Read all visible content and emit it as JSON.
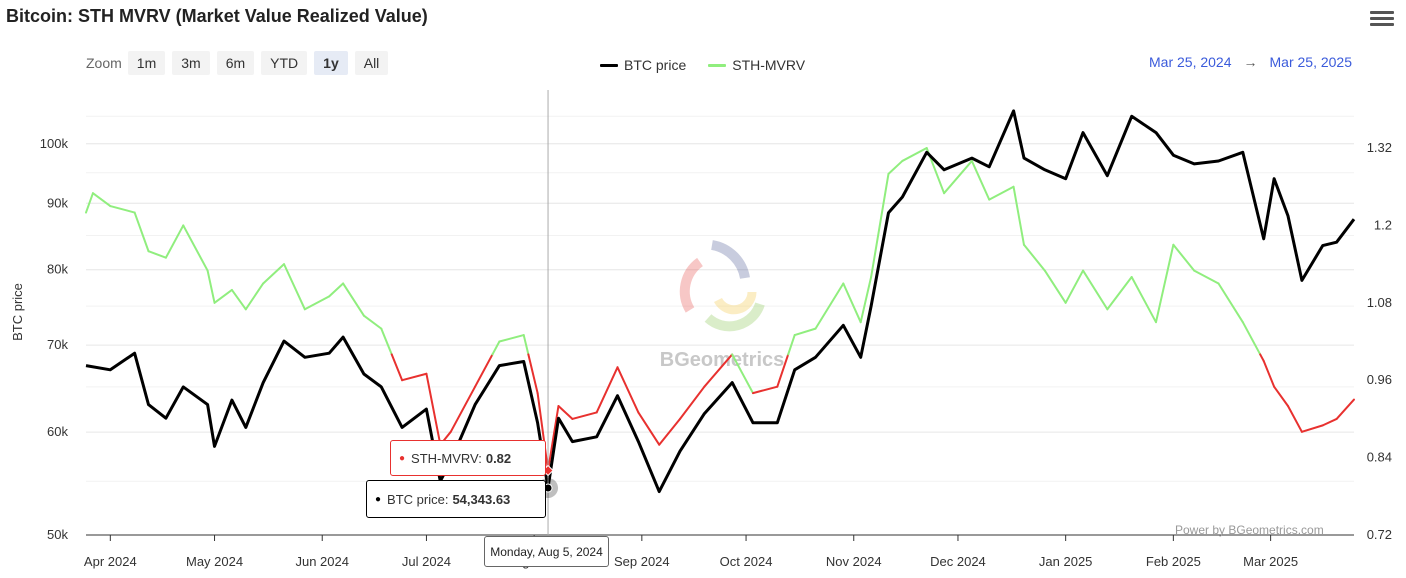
{
  "title": "Bitcoin: STH MVRV (Market Value Realized Value)",
  "zoom": {
    "label": "Zoom",
    "buttons": [
      "1m",
      "3m",
      "6m",
      "YTD",
      "1y",
      "All"
    ],
    "active": "1y"
  },
  "legend": [
    {
      "name": "BTC price",
      "color": "#000000"
    },
    {
      "name": "STH-MVRV",
      "color": "#90ee7e"
    }
  ],
  "range": {
    "from": "Mar 25, 2024",
    "arrow": "→",
    "to": "Mar 25, 2025"
  },
  "watermark": "BGeometrics",
  "credit": "Power by BGeometrics.com",
  "menu_icon": "hamburger-icon",
  "tooltips": {
    "mvrv": {
      "label": "STH-MVRV:",
      "value": "0.82"
    },
    "price": {
      "label": "BTC price:",
      "value": "54,343.63"
    },
    "date": "Monday, Aug 5, 2024"
  },
  "chart_data": {
    "type": "line",
    "x_type": "date",
    "x_range": [
      "2024-03-25",
      "2025-03-25"
    ],
    "x_ticks": [
      "Apr 2024",
      "May 2024",
      "Jun 2024",
      "Jul 2024",
      "Aug 2024",
      "Sep 2024",
      "Oct 2024",
      "Nov 2024",
      "Dec 2024",
      "Jan 2025",
      "Feb 2025",
      "Mar 2025"
    ],
    "y_left": {
      "label": "BTC price",
      "scale": "log",
      "ticks": [
        "50k",
        "60k",
        "70k",
        "80k",
        "90k",
        "100k"
      ],
      "range": [
        50000,
        110000
      ]
    },
    "y_right": {
      "label": "",
      "ticks": [
        "0.72",
        "0.84",
        "0.96",
        "1.08",
        "1.2",
        "1.32"
      ],
      "range": [
        0.72,
        1.41
      ]
    },
    "mvrv_threshold": 1.0,
    "mvrv_colors": {
      "above": "#90ee7e",
      "below": "#e8312f"
    },
    "series": [
      {
        "name": "BTC price",
        "axis": "left",
        "color": "#000000",
        "points": [
          [
            "2024-03-25",
            67500
          ],
          [
            "2024-04-01",
            67000
          ],
          [
            "2024-04-08",
            69000
          ],
          [
            "2024-04-12",
            63000
          ],
          [
            "2024-04-17",
            61500
          ],
          [
            "2024-04-22",
            65000
          ],
          [
            "2024-04-29",
            63000
          ],
          [
            "2024-05-01",
            58500
          ],
          [
            "2024-05-06",
            63500
          ],
          [
            "2024-05-10",
            60500
          ],
          [
            "2024-05-15",
            65500
          ],
          [
            "2024-05-21",
            70500
          ],
          [
            "2024-05-27",
            68500
          ],
          [
            "2024-06-03",
            69000
          ],
          [
            "2024-06-07",
            71000
          ],
          [
            "2024-06-13",
            66500
          ],
          [
            "2024-06-18",
            65000
          ],
          [
            "2024-06-24",
            60500
          ],
          [
            "2024-07-01",
            62500
          ],
          [
            "2024-07-05",
            55000
          ],
          [
            "2024-07-08",
            57000
          ],
          [
            "2024-07-15",
            63000
          ],
          [
            "2024-07-22",
            67500
          ],
          [
            "2024-07-29",
            68000
          ],
          [
            "2024-08-02",
            61000
          ],
          [
            "2024-08-05",
            54343.63
          ],
          [
            "2024-08-08",
            61500
          ],
          [
            "2024-08-12",
            59000
          ],
          [
            "2024-08-19",
            59500
          ],
          [
            "2024-08-25",
            64000
          ],
          [
            "2024-08-31",
            59000
          ],
          [
            "2024-09-06",
            54000
          ],
          [
            "2024-09-12",
            58000
          ],
          [
            "2024-09-19",
            62000
          ],
          [
            "2024-09-27",
            65500
          ],
          [
            "2024-10-03",
            61000
          ],
          [
            "2024-10-10",
            61000
          ],
          [
            "2024-10-15",
            67000
          ],
          [
            "2024-10-21",
            68500
          ],
          [
            "2024-10-29",
            72500
          ],
          [
            "2024-11-03",
            68500
          ],
          [
            "2024-11-06",
            75000
          ],
          [
            "2024-11-11",
            88500
          ],
          [
            "2024-11-15",
            91000
          ],
          [
            "2024-11-22",
            98500
          ],
          [
            "2024-11-27",
            95500
          ],
          [
            "2024-12-05",
            97500
          ],
          [
            "2024-12-10",
            96000
          ],
          [
            "2024-12-17",
            106000
          ],
          [
            "2024-12-20",
            97500
          ],
          [
            "2024-12-26",
            95500
          ],
          [
            "2025-01-01",
            94000
          ],
          [
            "2025-01-06",
            102000
          ],
          [
            "2025-01-13",
            94500
          ],
          [
            "2025-01-20",
            105000
          ],
          [
            "2025-01-27",
            102000
          ],
          [
            "2025-02-01",
            98000
          ],
          [
            "2025-02-07",
            96500
          ],
          [
            "2025-02-14",
            97000
          ],
          [
            "2025-02-21",
            98500
          ],
          [
            "2025-02-27",
            84500
          ],
          [
            "2025-03-02",
            94000
          ],
          [
            "2025-03-06",
            88000
          ],
          [
            "2025-03-10",
            78500
          ],
          [
            "2025-03-16",
            83500
          ],
          [
            "2025-03-20",
            84000
          ],
          [
            "2025-03-25",
            87500
          ]
        ]
      },
      {
        "name": "STH-MVRV",
        "axis": "right",
        "color": "#90ee7e",
        "points": [
          [
            "2024-03-25",
            1.22
          ],
          [
            "2024-03-27",
            1.25
          ],
          [
            "2024-04-01",
            1.23
          ],
          [
            "2024-04-08",
            1.22
          ],
          [
            "2024-04-12",
            1.16
          ],
          [
            "2024-04-17",
            1.15
          ],
          [
            "2024-04-22",
            1.2
          ],
          [
            "2024-04-29",
            1.13
          ],
          [
            "2024-05-01",
            1.08
          ],
          [
            "2024-05-06",
            1.1
          ],
          [
            "2024-05-10",
            1.07
          ],
          [
            "2024-05-15",
            1.11
          ],
          [
            "2024-05-21",
            1.14
          ],
          [
            "2024-05-27",
            1.07
          ],
          [
            "2024-06-03",
            1.09
          ],
          [
            "2024-06-07",
            1.11
          ],
          [
            "2024-06-13",
            1.06
          ],
          [
            "2024-06-18",
            1.04
          ],
          [
            "2024-06-24",
            0.96
          ],
          [
            "2024-07-01",
            0.97
          ],
          [
            "2024-07-05",
            0.86
          ],
          [
            "2024-07-08",
            0.88
          ],
          [
            "2024-07-15",
            0.95
          ],
          [
            "2024-07-22",
            1.02
          ],
          [
            "2024-07-29",
            1.03
          ],
          [
            "2024-08-02",
            0.94
          ],
          [
            "2024-08-05",
            0.82
          ],
          [
            "2024-08-08",
            0.92
          ],
          [
            "2024-08-12",
            0.9
          ],
          [
            "2024-08-19",
            0.91
          ],
          [
            "2024-08-25",
            0.98
          ],
          [
            "2024-08-31",
            0.91
          ],
          [
            "2024-09-06",
            0.86
          ],
          [
            "2024-09-12",
            0.9
          ],
          [
            "2024-09-19",
            0.95
          ],
          [
            "2024-09-27",
            1.0
          ],
          [
            "2024-10-03",
            0.94
          ],
          [
            "2024-10-10",
            0.95
          ],
          [
            "2024-10-15",
            1.03
          ],
          [
            "2024-10-21",
            1.04
          ],
          [
            "2024-10-29",
            1.11
          ],
          [
            "2024-11-03",
            1.05
          ],
          [
            "2024-11-06",
            1.12
          ],
          [
            "2024-11-11",
            1.28
          ],
          [
            "2024-11-15",
            1.3
          ],
          [
            "2024-11-22",
            1.32
          ],
          [
            "2024-11-27",
            1.25
          ],
          [
            "2024-12-05",
            1.3
          ],
          [
            "2024-12-10",
            1.24
          ],
          [
            "2024-12-17",
            1.26
          ],
          [
            "2024-12-20",
            1.17
          ],
          [
            "2024-12-26",
            1.13
          ],
          [
            "2025-01-01",
            1.08
          ],
          [
            "2025-01-06",
            1.13
          ],
          [
            "2025-01-13",
            1.07
          ],
          [
            "2025-01-20",
            1.12
          ],
          [
            "2025-01-27",
            1.05
          ],
          [
            "2025-02-01",
            1.17
          ],
          [
            "2025-02-07",
            1.13
          ],
          [
            "2025-02-14",
            1.11
          ],
          [
            "2025-02-21",
            1.05
          ],
          [
            "2025-02-27",
            0.99
          ],
          [
            "2025-03-02",
            0.95
          ],
          [
            "2025-03-06",
            0.92
          ],
          [
            "2025-03-10",
            0.88
          ],
          [
            "2025-03-16",
            0.89
          ],
          [
            "2025-03-20",
            0.9
          ],
          [
            "2025-03-25",
            0.93
          ]
        ]
      }
    ],
    "highlight": {
      "date": "2024-08-05",
      "BTC price": 54343.63,
      "STH-MVRV": 0.82
    }
  }
}
